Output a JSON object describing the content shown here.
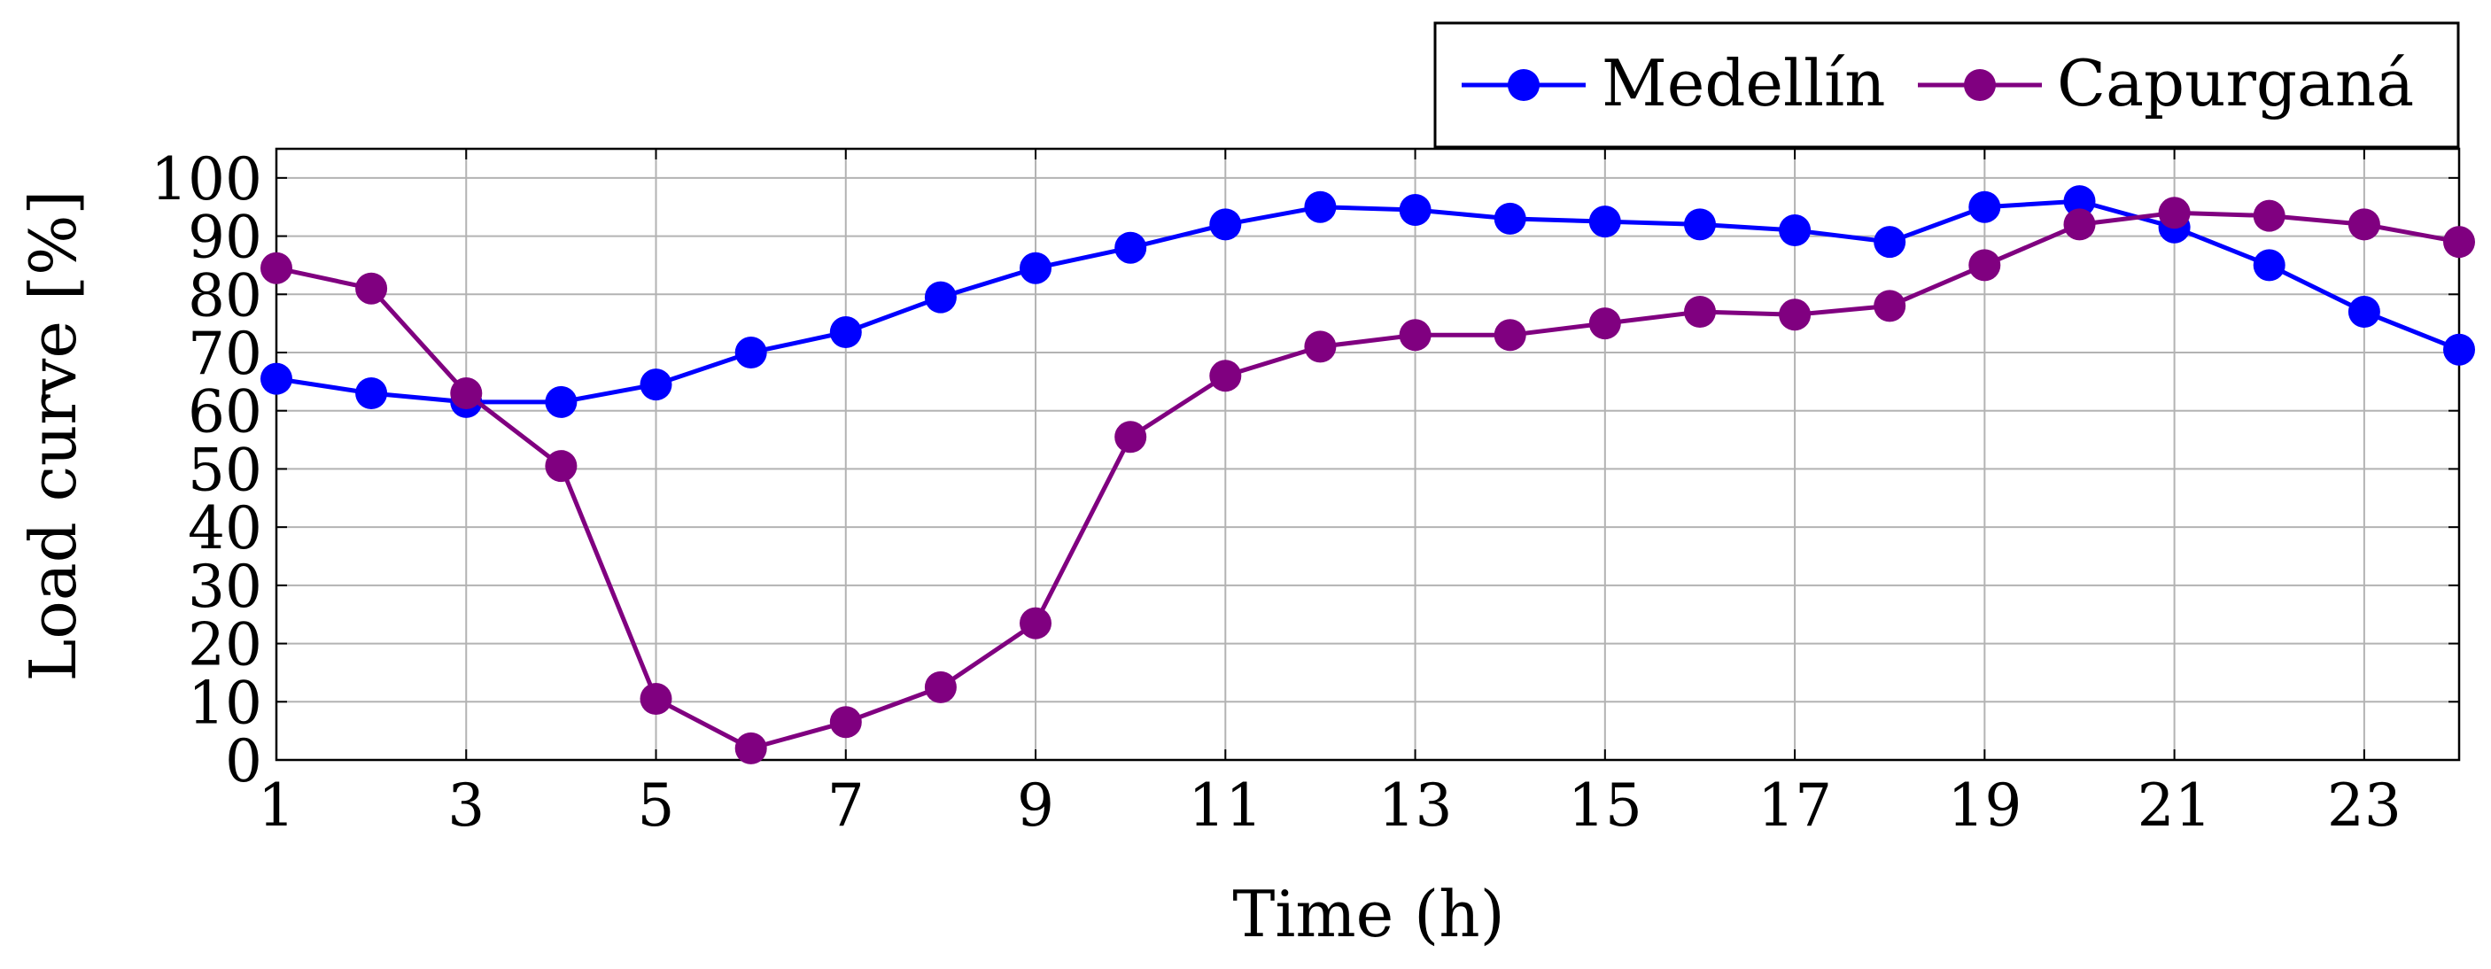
{
  "chart_data": {
    "type": "line",
    "title": "",
    "xlabel": "Time (h)",
    "ylabel": "Load curve [%]",
    "xlim": [
      1,
      24
    ],
    "ylim": [
      0,
      105
    ],
    "xticks": [
      1,
      3,
      5,
      7,
      9,
      11,
      13,
      15,
      17,
      19,
      21,
      23
    ],
    "yticks": [
      0,
      10,
      20,
      30,
      40,
      50,
      60,
      70,
      80,
      90,
      100
    ],
    "grid": true,
    "legend_position": "top-right",
    "x": [
      1,
      2,
      3,
      4,
      5,
      6,
      7,
      8,
      9,
      10,
      11,
      12,
      13,
      14,
      15,
      16,
      17,
      18,
      19,
      20,
      21,
      22,
      23,
      24
    ],
    "series": [
      {
        "name": "Medellín",
        "color": "#0000ff",
        "values": [
          65.5,
          63,
          61.5,
          61.5,
          64.5,
          70,
          73.5,
          79.5,
          84.5,
          88,
          92,
          95,
          94.5,
          93,
          92.5,
          92,
          91,
          89,
          95,
          96,
          91.5,
          85,
          77,
          70.5
        ]
      },
      {
        "name": "Capurganá",
        "color": "#800080",
        "values": [
          84.5,
          81,
          63,
          50.5,
          10.5,
          2,
          6.5,
          12.5,
          23.5,
          55.5,
          66,
          71,
          73,
          73,
          75,
          77,
          76.5,
          78,
          85,
          92,
          94,
          93.5,
          92,
          89
        ]
      }
    ]
  }
}
